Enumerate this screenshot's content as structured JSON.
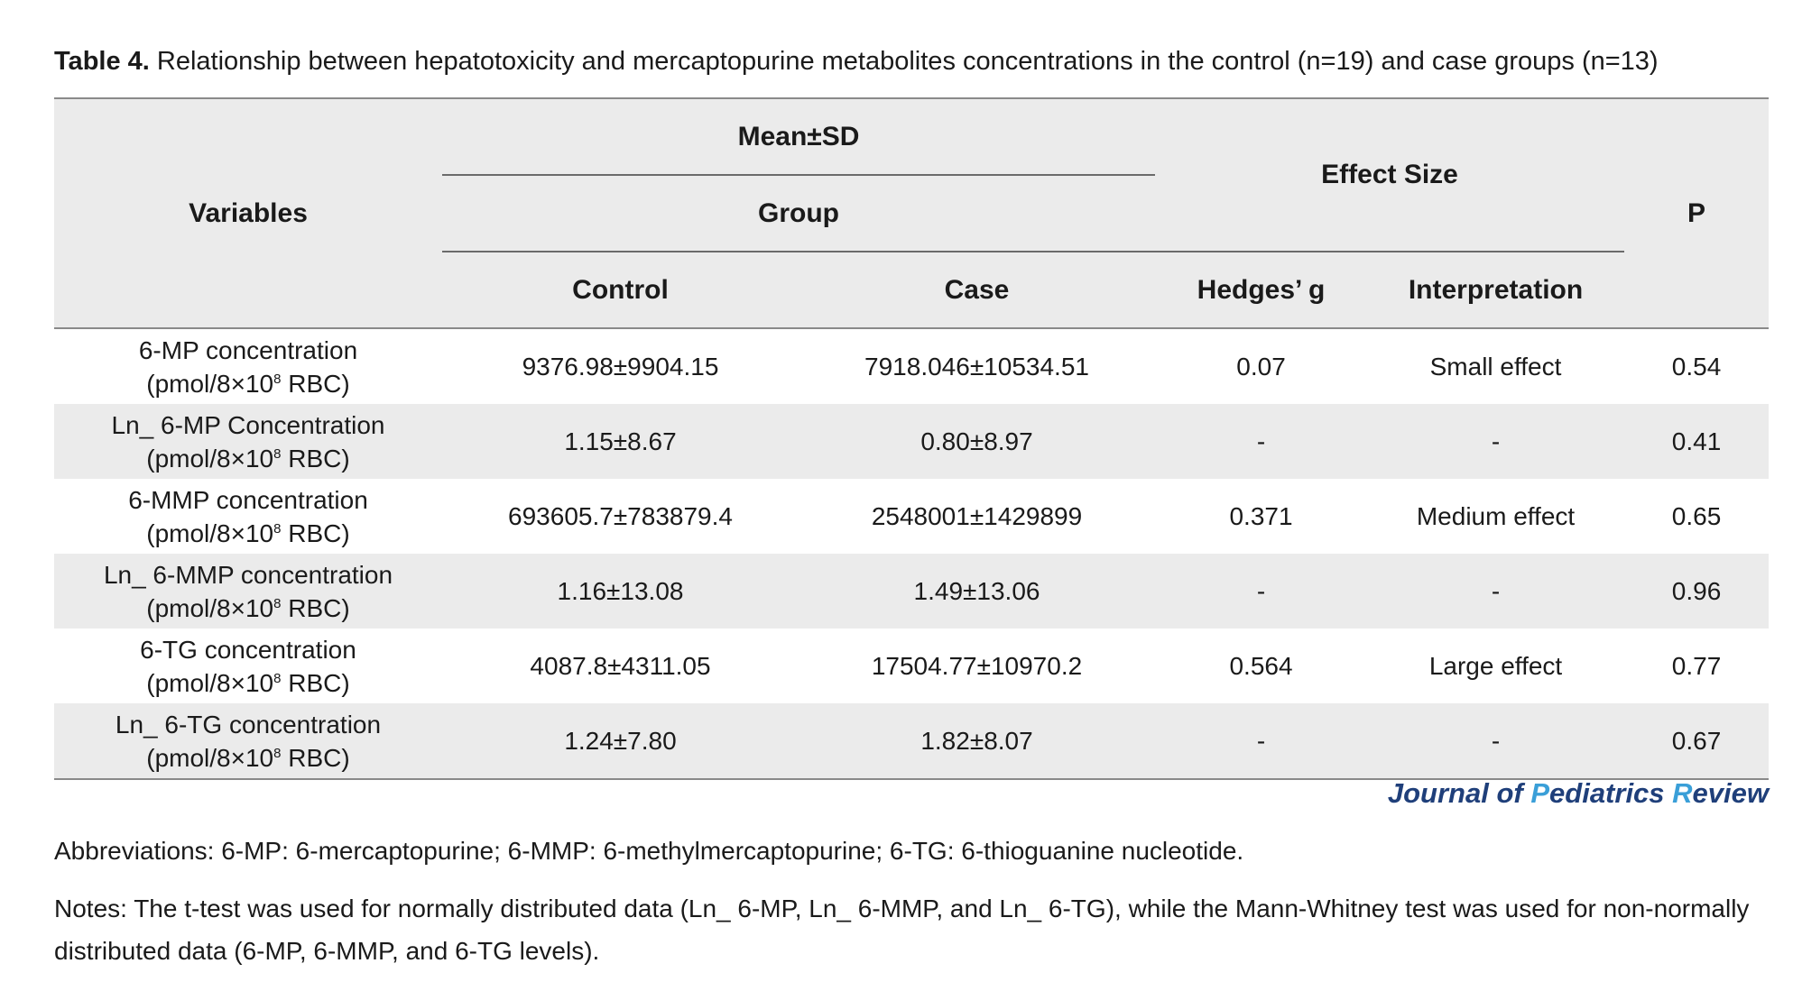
{
  "caption": {
    "label": "Table 4.",
    "text": " Relationship between hepatotoxicity and mercaptopurine metabolites concentrations in the control (n=19) and case groups (n=13)"
  },
  "header": {
    "variables": "Variables",
    "mean_sd": "Mean±SD",
    "group": "Group",
    "effect_size": "Effect Size",
    "p": "P",
    "control": "Control",
    "case": "Case",
    "hedges_g": "Hedges’ g",
    "interpretation": "Interpretation"
  },
  "unit": {
    "pre": "(pmol/8×10",
    "sup": "8",
    "post": " RBC)"
  },
  "rows": [
    {
      "variable": "6-MP concentration",
      "control": "9376.98±9904.15",
      "case": "7918.046±10534.51",
      "hedges_g": "0.07",
      "interpretation": "Small effect",
      "p": "0.54"
    },
    {
      "variable": "Ln_ 6-MP Concentration",
      "control": "1.15±8.67",
      "case": "0.80±8.97",
      "hedges_g": "-",
      "interpretation": "-",
      "p": "0.41"
    },
    {
      "variable": "6-MMP concentration",
      "control": "693605.7±783879.4",
      "case": "2548001±1429899",
      "hedges_g": "0.371",
      "interpretation": "Medium effect",
      "p": "0.65"
    },
    {
      "variable": "Ln_ 6-MMP concentration",
      "control": "1.16±13.08",
      "case": "1.49±13.06",
      "hedges_g": "-",
      "interpretation": "-",
      "p": "0.96"
    },
    {
      "variable": "6-TG concentration",
      "control": "4087.8±4311.05",
      "case": "17504.77±10970.2",
      "hedges_g": "0.564",
      "interpretation": "Large effect",
      "p": "0.77"
    },
    {
      "variable": "Ln_ 6-TG concentration",
      "control": "1.24±7.80",
      "case": "1.82±8.07",
      "hedges_g": "-",
      "interpretation": "-",
      "p": "0.67"
    }
  ],
  "journal": {
    "j": "J",
    "ournal_of": "ournal of ",
    "p": "P",
    "ediatrics": "ediatrics ",
    "r": "R",
    "eview": "eview"
  },
  "abbreviations": "Abbreviations: 6-MP: 6-mercaptopurine; 6-MMP: 6-methylmercaptopurine; 6-TG: 6-thioguanine nucleotide.",
  "notes": "Notes: The t-test was used for normally distributed data (Ln_ 6-MP, Ln_ 6-MMP, and Ln_ 6-TG), while the Mann-Whitney test was used for non-normally distributed data (6-MP, 6-MMP, and 6-TG levels)."
}
